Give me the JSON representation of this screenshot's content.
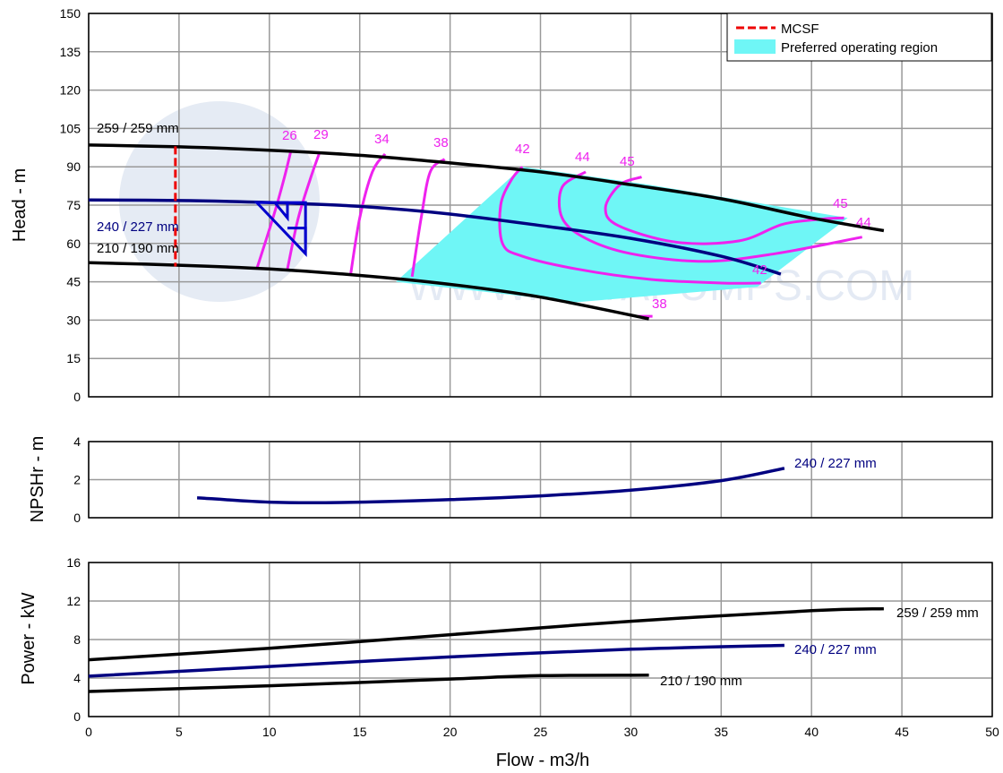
{
  "chart_data": [
    {
      "type": "line",
      "panel": "head",
      "ylabel": "Head - m",
      "ylim": [
        0,
        150
      ],
      "yticks": [
        0,
        15,
        30,
        45,
        60,
        75,
        90,
        105,
        120,
        135,
        150
      ],
      "xlim": [
        0,
        50
      ],
      "grid": true,
      "watermark": "WWW.DAYAPUMPS.COM",
      "colors": {
        "impeller_max_min": "#000000",
        "impeller_selected": "#000080",
        "efficiency": "#ee22ee",
        "mcsf": "#ee0000",
        "preferred_region": "#6ff6f6"
      },
      "legend": {
        "position": "top-right",
        "items": [
          {
            "label": "MCSF",
            "style": "dashed",
            "color": "#ee0000"
          },
          {
            "label": "Preferred operating region",
            "style": "fill",
            "color": "#6ff6f6"
          }
        ]
      },
      "series": [
        {
          "name": "259 / 259 mm",
          "color": "#000000",
          "x": [
            0,
            5,
            10,
            15,
            20,
            25,
            30,
            35,
            40,
            44
          ],
          "y": [
            98.5,
            97.8,
            96.5,
            94.5,
            91.5,
            88,
            83,
            77.5,
            70,
            65
          ]
        },
        {
          "name": "240 / 227 mm",
          "color": "#000080",
          "x": [
            0,
            5,
            10,
            15,
            20,
            25,
            30,
            35,
            38.3
          ],
          "y": [
            77,
            76.8,
            76.0,
            74.5,
            71.5,
            67,
            62,
            55,
            48
          ]
        },
        {
          "name": "210 / 190 mm",
          "color": "#000000",
          "x": [
            0,
            5,
            10,
            15,
            20,
            25,
            31
          ],
          "y": [
            52.5,
            51.5,
            50,
            47.5,
            44,
            39,
            30.5
          ]
        }
      ],
      "mcsf_x": 4.8,
      "preferred_region": [
        [
          17,
          45
        ],
        [
          24,
          90
        ],
        [
          31,
          83
        ],
        [
          42,
          70
        ],
        [
          37,
          43
        ],
        [
          27,
          37
        ],
        [
          17,
          45
        ]
      ],
      "efficiency_contours": [
        {
          "label": "26",
          "x": [
            11.2,
            10.8,
            10.2,
            9.3
          ],
          "y": [
            96.5,
            85,
            70,
            50
          ]
        },
        {
          "label": "29",
          "x": [
            12.8,
            12.3,
            11.6,
            11.0
          ],
          "y": [
            96,
            86,
            70,
            50
          ]
        },
        {
          "label": "34",
          "x": [
            16.4,
            15.7,
            15.0,
            14.5
          ],
          "y": [
            95,
            88,
            70,
            48
          ]
        },
        {
          "label": "38",
          "x": [
            19.7,
            18.9,
            18.4,
            17.9
          ],
          "y": [
            93,
            88,
            70,
            47
          ]
        },
        {
          "label": "38",
          "x": [
            30.4,
            31.2
          ],
          "y": [
            31.5,
            31.5
          ]
        },
        {
          "label": "42",
          "x": [
            24.0,
            23.4,
            22.8,
            22.9,
            24.0,
            27.0,
            31.0,
            35.0,
            37.2
          ],
          "y": [
            90,
            85,
            75,
            60,
            55,
            50,
            46,
            44.5,
            44.5
          ]
        },
        {
          "label": "44",
          "x": [
            27.5,
            26.2,
            26.2,
            27.5,
            30.0,
            34.0,
            38.0,
            42.8
          ],
          "y": [
            88,
            82,
            70,
            62,
            56,
            53,
            56,
            62.5
          ]
        },
        {
          "label": "45",
          "x": [
            30.6,
            29.4,
            28.6,
            29.3,
            32.5,
            36.0,
            38.4,
            40.5,
            41.8
          ],
          "y": [
            86,
            83,
            74,
            67,
            60.5,
            61,
            67.5,
            69.5,
            70
          ]
        }
      ],
      "efficiency_labels": [
        "26",
        "29",
        "34",
        "38",
        "42",
        "44",
        "45",
        "45",
        "44",
        "42",
        "38"
      ]
    },
    {
      "type": "line",
      "panel": "npshr",
      "ylabel": "NPSHr - m",
      "ylim": [
        0,
        4
      ],
      "yticks": [
        0,
        2,
        4
      ],
      "xlim": [
        0,
        50
      ],
      "grid": true,
      "series": [
        {
          "name": "240 / 227 mm",
          "color": "#000080",
          "x": [
            6,
            10,
            14,
            20,
            25,
            30,
            35,
            38.5
          ],
          "y": [
            1.05,
            0.82,
            0.8,
            0.95,
            1.15,
            1.45,
            1.95,
            2.6
          ]
        }
      ]
    },
    {
      "type": "line",
      "panel": "power",
      "ylabel": "Power - kW",
      "ylim": [
        0,
        16
      ],
      "yticks": [
        0,
        4,
        8,
        12,
        16
      ],
      "xlim": [
        0,
        50
      ],
      "xticks": [
        0,
        5,
        10,
        15,
        20,
        25,
        30,
        35,
        40,
        45,
        50
      ],
      "xlabel": "Flow - m3/h",
      "grid": true,
      "series": [
        {
          "name": "259 / 259 mm",
          "color": "#000000",
          "x": [
            0,
            10,
            20,
            30,
            40,
            44
          ],
          "y": [
            5.9,
            7.1,
            8.5,
            9.9,
            11.0,
            11.2
          ]
        },
        {
          "name": "240 / 227 mm",
          "color": "#000080",
          "x": [
            0,
            10,
            20,
            30,
            38.5
          ],
          "y": [
            4.2,
            5.2,
            6.2,
            7.0,
            7.4
          ]
        },
        {
          "name": "210 / 190 mm",
          "color": "#000000",
          "x": [
            0,
            10,
            20,
            25,
            31
          ],
          "y": [
            2.6,
            3.2,
            3.9,
            4.25,
            4.3
          ]
        }
      ]
    }
  ],
  "labels": {
    "head_259": "259 / 259 mm",
    "head_240": "240 / 227 mm",
    "head_210": "210 / 190 mm",
    "npsh_240": "240 / 227 mm",
    "power_259": "259 / 259 mm",
    "power_240": "240 / 227 mm",
    "power_210": "210 / 190 mm",
    "legend_mcsf": "MCSF",
    "legend_por": "Preferred operating region",
    "watermark": "WWW.DAYAPUMPS.COM"
  }
}
